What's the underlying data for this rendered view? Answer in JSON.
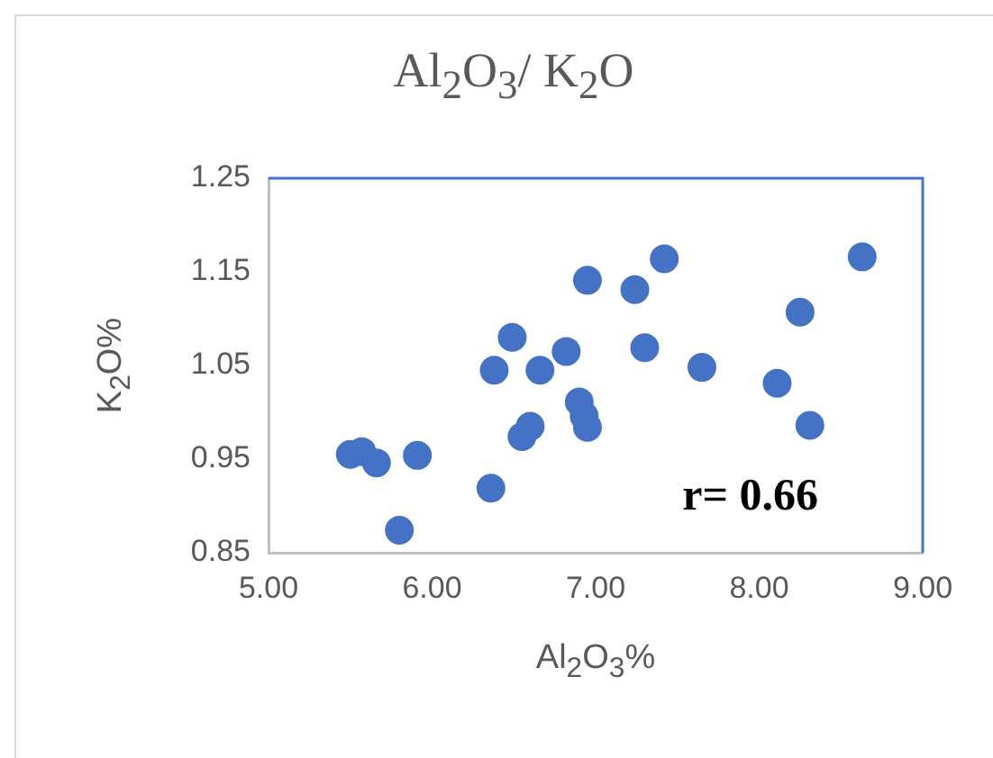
{
  "chart_data": {
    "type": "scatter",
    "title": "Al$_{2}$O$_{3}$/ K$_{2}$O",
    "xlabel": "Al$_{2}$O$_{3}$%",
    "ylabel": "K$_{2}$O%",
    "annotations": [
      "r= 0.66"
    ],
    "marker": "circle",
    "legend": false,
    "grid": false,
    "xlim": [
      5,
      9
    ],
    "xticks": [
      {
        "value": 5,
        "label": "5.00"
      },
      {
        "value": 6,
        "label": "6.00"
      },
      {
        "value": 7,
        "label": "7.00"
      },
      {
        "value": 8,
        "label": "8.00"
      },
      {
        "value": 9,
        "label": "9.00"
      }
    ],
    "ylim": [
      0.85,
      1.25
    ],
    "yticks": [
      0.85,
      0.95,
      1.05,
      1.15,
      1.25
    ],
    "series": [
      {
        "color": "#4472c4",
        "x": [
          5.5,
          5.57,
          5.66,
          5.91,
          5.8,
          6.36,
          6.38,
          6.49,
          6.66,
          6.55,
          6.6,
          6.82,
          6.9,
          6.93,
          6.95,
          6.95,
          7.24,
          7.42,
          7.3,
          7.65,
          8.11,
          8.25,
          8.31,
          8.63
        ],
        "values": [
          0.955,
          0.958,
          0.946,
          0.954,
          0.874,
          0.919,
          1.045,
          1.08,
          1.045,
          0.974,
          0.985,
          1.065,
          1.011,
          0.996,
          0.984,
          1.141,
          1.131,
          1.164,
          1.069,
          1.048,
          1.031,
          1.107,
          0.986,
          1.166
        ]
      }
    ]
  }
}
